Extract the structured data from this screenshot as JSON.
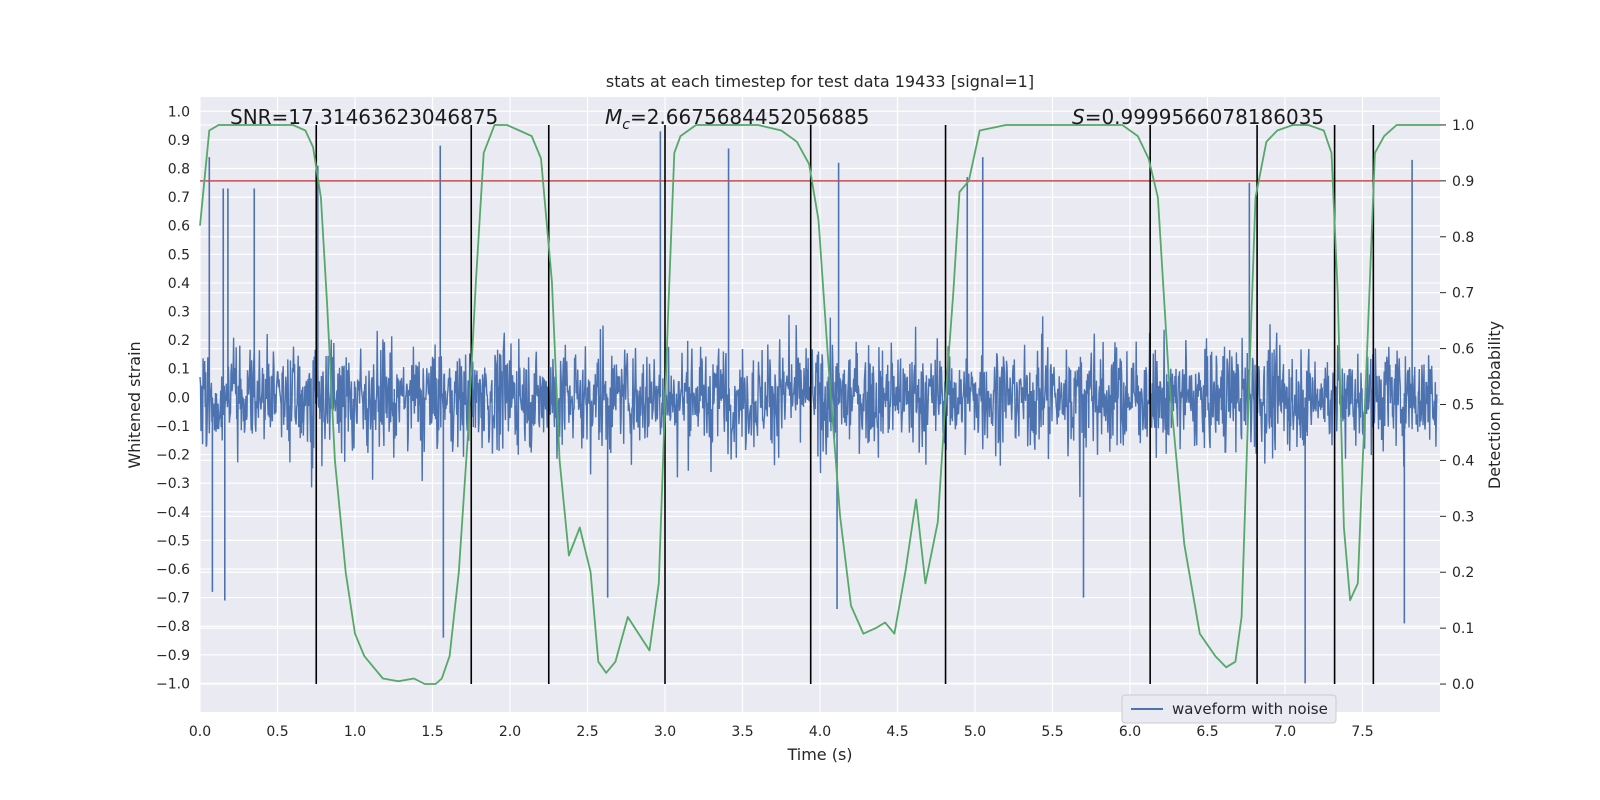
{
  "chart_data": {
    "type": "line",
    "title": "stats at each timestep for test data 19433 [signal=1]",
    "xlabel": "Time (s)",
    "ylabel": "Whitened strain",
    "y2label": "Detection probability",
    "xlim": [
      0.0,
      8.0
    ],
    "ylim": [
      -1.1,
      1.05
    ],
    "y2lim": [
      -0.05,
      1.05
    ],
    "xticks": [
      0.0,
      0.5,
      1.0,
      1.5,
      2.0,
      2.5,
      3.0,
      3.5,
      4.0,
      4.5,
      5.0,
      5.5,
      6.0,
      6.5,
      7.0,
      7.5
    ],
    "yticks": [
      1.0,
      0.9,
      0.8,
      0.7,
      0.6,
      0.5,
      0.4,
      0.3,
      0.2,
      0.1,
      0.0,
      -0.1,
      -0.2,
      -0.3,
      -0.4,
      -0.5,
      -0.6,
      -0.7,
      -0.8,
      -0.9,
      -1.0
    ],
    "y2ticks": [
      0.0,
      0.1,
      0.2,
      0.3,
      0.4,
      0.5,
      0.6,
      0.7,
      0.8,
      0.9,
      1.0
    ],
    "xtick_labels": [
      "0.0",
      "0.5",
      "1.0",
      "1.5",
      "2.0",
      "2.5",
      "3.0",
      "3.5",
      "4.0",
      "4.5",
      "5.0",
      "5.5",
      "6.0",
      "6.5",
      "7.0",
      "7.5"
    ],
    "ytick_labels": [
      "1.0",
      "0.9",
      "0.8",
      "0.7",
      "0.6",
      "0.5",
      "0.4",
      "0.3",
      "0.2",
      "0.1",
      "0.0",
      "−0.1",
      "−0.2",
      "−0.3",
      "−0.4",
      "−0.5",
      "−0.6",
      "−0.7",
      "−0.8",
      "−0.9",
      "−1.0"
    ],
    "y2tick_labels": [
      "0.0",
      "0.1",
      "0.2",
      "0.3",
      "0.4",
      "0.5",
      "0.6",
      "0.7",
      "0.8",
      "0.9",
      "1.0"
    ],
    "grid": true,
    "legend": {
      "position": "bottom-right",
      "entries": [
        "waveform with noise"
      ]
    },
    "annotations": {
      "snr": "SNR=17.31463623046875",
      "mc_symbol": "M",
      "mc_sub": "c",
      "mc_value": "=2.6675684452056885",
      "s_symbol": "S",
      "s_value": "=0.9999566078186035"
    },
    "threshold": {
      "axis": "y2",
      "value": 0.9,
      "color": "#c44e52"
    },
    "vlines": [
      0.75,
      1.75,
      2.25,
      3.0,
      3.94,
      4.81,
      6.13,
      6.82,
      7.32,
      7.57
    ],
    "series": [
      {
        "name": "waveform with noise",
        "axis": "y",
        "color": "#4c72b0",
        "sample_rate_hz": 2048,
        "envelope_typical": 0.3,
        "peaks": [
          {
            "t": 0.06,
            "v": 0.84
          },
          {
            "t": 0.15,
            "v": 0.73
          },
          {
            "t": 0.18,
            "v": 0.73
          },
          {
            "t": 0.35,
            "v": 0.73
          },
          {
            "t": 0.76,
            "v": 0.81
          },
          {
            "t": 1.55,
            "v": 0.88
          },
          {
            "t": 1.57,
            "v": -0.84
          },
          {
            "t": 2.97,
            "v": 0.93
          },
          {
            "t": 3.41,
            "v": 0.87
          },
          {
            "t": 4.12,
            "v": 0.82
          },
          {
            "t": 5.05,
            "v": 0.84
          },
          {
            "t": 4.95,
            "v": 0.77
          },
          {
            "t": 7.13,
            "v": -1.0
          },
          {
            "t": 7.82,
            "v": 0.83
          },
          {
            "t": 6.77,
            "v": 0.75
          },
          {
            "t": 0.08,
            "v": -0.68
          },
          {
            "t": 0.16,
            "v": -0.71
          },
          {
            "t": 4.11,
            "v": -0.74
          },
          {
            "t": 5.7,
            "v": -0.7
          },
          {
            "t": 7.77,
            "v": -0.79
          },
          {
            "t": 2.63,
            "v": -0.7
          }
        ]
      },
      {
        "name": "detection probability",
        "axis": "y2",
        "color": "#55a868",
        "x": [
          0.0,
          0.06,
          0.12,
          0.25,
          0.45,
          0.6,
          0.68,
          0.73,
          0.78,
          0.82,
          0.87,
          0.94,
          1.0,
          1.06,
          1.12,
          1.18,
          1.28,
          1.38,
          1.45,
          1.52,
          1.56,
          1.61,
          1.67,
          1.73,
          1.78,
          1.83,
          1.9,
          1.98,
          2.06,
          2.14,
          2.2,
          2.27,
          2.32,
          2.38,
          2.45,
          2.52,
          2.57,
          2.62,
          2.68,
          2.76,
          2.9,
          2.96,
          3.02,
          3.06,
          3.1,
          3.2,
          3.4,
          3.6,
          3.75,
          3.85,
          3.93,
          3.99,
          4.06,
          4.13,
          4.2,
          4.28,
          4.36,
          4.42,
          4.48,
          4.55,
          4.62,
          4.68,
          4.76,
          4.82,
          4.86,
          4.9,
          4.96,
          5.03,
          5.2,
          5.4,
          5.6,
          5.8,
          5.95,
          6.05,
          6.12,
          6.18,
          6.25,
          6.35,
          6.45,
          6.55,
          6.62,
          6.68,
          6.72,
          6.77,
          6.81,
          6.88,
          6.95,
          7.05,
          7.15,
          7.25,
          7.3,
          7.34,
          7.38,
          7.42,
          7.47,
          7.53,
          7.58,
          7.64,
          7.72,
          7.85,
          8.0
        ],
        "values": [
          0.82,
          0.99,
          1.0,
          1.0,
          1.0,
          1.0,
          0.99,
          0.96,
          0.87,
          0.68,
          0.4,
          0.2,
          0.09,
          0.05,
          0.03,
          0.01,
          0.005,
          0.01,
          0.0,
          0.0,
          0.01,
          0.05,
          0.2,
          0.45,
          0.72,
          0.95,
          1.0,
          1.0,
          0.99,
          0.98,
          0.94,
          0.72,
          0.4,
          0.23,
          0.28,
          0.2,
          0.04,
          0.02,
          0.04,
          0.12,
          0.06,
          0.18,
          0.66,
          0.95,
          0.98,
          1.0,
          1.0,
          1.0,
          0.99,
          0.97,
          0.93,
          0.83,
          0.55,
          0.3,
          0.14,
          0.09,
          0.1,
          0.11,
          0.09,
          0.2,
          0.33,
          0.18,
          0.29,
          0.55,
          0.7,
          0.88,
          0.9,
          0.99,
          1.0,
          1.0,
          1.0,
          1.0,
          1.0,
          0.98,
          0.94,
          0.87,
          0.55,
          0.25,
          0.09,
          0.05,
          0.03,
          0.04,
          0.12,
          0.55,
          0.87,
          0.97,
          0.99,
          1.0,
          1.0,
          0.99,
          0.95,
          0.7,
          0.28,
          0.15,
          0.18,
          0.6,
          0.95,
          0.98,
          1.0,
          1.0,
          1.0
        ]
      }
    ]
  }
}
